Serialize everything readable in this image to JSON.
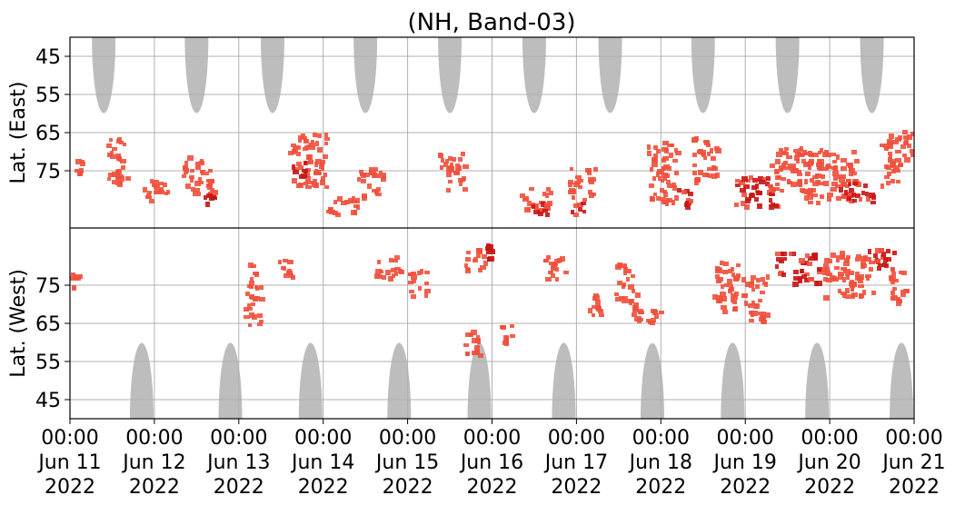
{
  "chart_data": {
    "type": "heatmap",
    "title": "(NH, Band-03)",
    "ylabel_top": "Lat. (East)",
    "ylabel_bottom": "Lat. (West)",
    "x_ticks": [
      {
        "time": "2022-06-11 00:00",
        "line1": "00:00",
        "line2": "Jun 11",
        "line3": "2022"
      },
      {
        "time": "2022-06-12 00:00",
        "line1": "00:00",
        "line2": "Jun 12",
        "line3": "2022"
      },
      {
        "time": "2022-06-13 00:00",
        "line1": "00:00",
        "line2": "Jun 13",
        "line3": "2022"
      },
      {
        "time": "2022-06-14 00:00",
        "line1": "00:00",
        "line2": "Jun 14",
        "line3": "2022"
      },
      {
        "time": "2022-06-15 00:00",
        "line1": "00:00",
        "line2": "Jun 15",
        "line3": "2022"
      },
      {
        "time": "2022-06-16 00:00",
        "line1": "00:00",
        "line2": "Jun 16",
        "line3": "2022"
      },
      {
        "time": "2022-06-17 00:00",
        "line1": "00:00",
        "line2": "Jun 17",
        "line3": "2022"
      },
      {
        "time": "2022-06-18 00:00",
        "line1": "00:00",
        "line2": "Jun 18",
        "line3": "2022"
      },
      {
        "time": "2022-06-19 00:00",
        "line1": "00:00",
        "line2": "Jun 19",
        "line3": "2022"
      },
      {
        "time": "2022-06-20 00:00",
        "line1": "00:00",
        "line2": "Jun 20",
        "line3": "2022"
      },
      {
        "time": "2022-06-21 00:00",
        "line1": "00:00",
        "line2": "Jun 21",
        "line3": "2022"
      }
    ],
    "y_ticks_east": [
      "45",
      "55",
      "65",
      "75"
    ],
    "y_ticks_west": [
      "75",
      "65",
      "55",
      "45"
    ],
    "xlim": [
      "2022-06-11 00:00",
      "2022-06-21 00:00"
    ],
    "grid": true,
    "colors": {
      "activity": "#f0503c",
      "activity_strong": "#c81414",
      "coverage_gap": "#bdbdbd",
      "grid": "#b0b0b0"
    },
    "east_gap_centers_day": [
      0.4,
      1.5,
      2.4,
      3.5,
      4.5,
      5.5,
      6.4,
      7.5,
      8.5,
      9.5
    ],
    "west_gap_centers_day": [
      0.85,
      1.9,
      2.85,
      3.9,
      4.85,
      5.85,
      6.9,
      7.85,
      8.85,
      9.85
    ],
    "activity_clusters": [
      {
        "day": 0.1,
        "lat_side": "east",
        "lat": 75,
        "day_width": 0.12,
        "lat_width": 7,
        "strength": "normal"
      },
      {
        "day": 0.05,
        "lat_side": "west",
        "lat": 77,
        "day_width": 0.1,
        "lat_width": 5,
        "strength": "normal"
      },
      {
        "day": 0.55,
        "lat_side": "east",
        "lat": 72,
        "day_width": 0.25,
        "lat_width": 12,
        "strength": "normal"
      },
      {
        "day": 1.0,
        "lat_side": "east",
        "lat": 80,
        "day_width": 0.3,
        "lat_width": 6,
        "strength": "normal"
      },
      {
        "day": 1.5,
        "lat_side": "east",
        "lat": 76,
        "day_width": 0.35,
        "lat_width": 10,
        "strength": "normal"
      },
      {
        "day": 1.65,
        "lat_side": "east",
        "lat": 82,
        "day_width": 0.15,
        "lat_width": 5,
        "strength": "strong"
      },
      {
        "day": 2.15,
        "lat_side": "west",
        "lat": 78,
        "day_width": 0.1,
        "lat_width": 6,
        "strength": "normal"
      },
      {
        "day": 2.15,
        "lat_side": "west",
        "lat": 70,
        "day_width": 0.2,
        "lat_width": 10,
        "strength": "normal"
      },
      {
        "day": 2.55,
        "lat_side": "west",
        "lat": 80,
        "day_width": 0.2,
        "lat_width": 5,
        "strength": "normal"
      },
      {
        "day": 2.8,
        "lat_side": "east",
        "lat": 72,
        "day_width": 0.45,
        "lat_width": 14,
        "strength": "normal"
      },
      {
        "day": 2.7,
        "lat_side": "east",
        "lat": 74,
        "day_width": 0.15,
        "lat_width": 4,
        "strength": "strong"
      },
      {
        "day": 3.2,
        "lat_side": "east",
        "lat": 84,
        "day_width": 0.4,
        "lat_width": 5,
        "strength": "normal"
      },
      {
        "day": 3.55,
        "lat_side": "east",
        "lat": 78,
        "day_width": 0.3,
        "lat_width": 8,
        "strength": "normal"
      },
      {
        "day": 3.75,
        "lat_side": "west",
        "lat": 80,
        "day_width": 0.3,
        "lat_width": 6,
        "strength": "normal"
      },
      {
        "day": 4.1,
        "lat_side": "west",
        "lat": 76,
        "day_width": 0.2,
        "lat_width": 8,
        "strength": "normal"
      },
      {
        "day": 4.5,
        "lat_side": "east",
        "lat": 75,
        "day_width": 0.3,
        "lat_width": 10,
        "strength": "normal"
      },
      {
        "day": 4.8,
        "lat_side": "west",
        "lat": 82,
        "day_width": 0.3,
        "lat_width": 6,
        "strength": "normal"
      },
      {
        "day": 4.95,
        "lat_side": "west",
        "lat": 84,
        "day_width": 0.08,
        "lat_width": 4,
        "strength": "strong"
      },
      {
        "day": 4.75,
        "lat_side": "west",
        "lat": 60,
        "day_width": 0.2,
        "lat_width": 8,
        "strength": "normal"
      },
      {
        "day": 5.15,
        "lat_side": "west",
        "lat": 62,
        "day_width": 0.15,
        "lat_width": 6,
        "strength": "normal"
      },
      {
        "day": 5.5,
        "lat_side": "east",
        "lat": 82,
        "day_width": 0.35,
        "lat_width": 6,
        "strength": "normal"
      },
      {
        "day": 5.55,
        "lat_side": "east",
        "lat": 84,
        "day_width": 0.2,
        "lat_width": 4,
        "strength": "strong"
      },
      {
        "day": 5.75,
        "lat_side": "west",
        "lat": 80,
        "day_width": 0.3,
        "lat_width": 6,
        "strength": "normal"
      },
      {
        "day": 6.05,
        "lat_side": "east",
        "lat": 78,
        "day_width": 0.3,
        "lat_width": 8,
        "strength": "normal"
      },
      {
        "day": 6.0,
        "lat_side": "east",
        "lat": 84,
        "day_width": 0.2,
        "lat_width": 4,
        "strength": "strong"
      },
      {
        "day": 6.2,
        "lat_side": "west",
        "lat": 70,
        "day_width": 0.15,
        "lat_width": 8,
        "strength": "normal"
      },
      {
        "day": 6.55,
        "lat_side": "west",
        "lat": 76,
        "day_width": 0.2,
        "lat_width": 10,
        "strength": "normal"
      },
      {
        "day": 6.7,
        "lat_side": "west",
        "lat": 70,
        "day_width": 0.15,
        "lat_width": 8,
        "strength": "normal"
      },
      {
        "day": 6.9,
        "lat_side": "west",
        "lat": 68,
        "day_width": 0.15,
        "lat_width": 5,
        "strength": "normal"
      },
      {
        "day": 7.0,
        "lat_side": "east",
        "lat": 75,
        "day_width": 0.35,
        "lat_width": 16,
        "strength": "normal"
      },
      {
        "day": 7.25,
        "lat_side": "east",
        "lat": 82,
        "day_width": 0.2,
        "lat_width": 5,
        "strength": "strong"
      },
      {
        "day": 7.5,
        "lat_side": "east",
        "lat": 72,
        "day_width": 0.3,
        "lat_width": 12,
        "strength": "normal"
      },
      {
        "day": 7.75,
        "lat_side": "west",
        "lat": 75,
        "day_width": 0.3,
        "lat_width": 14,
        "strength": "normal"
      },
      {
        "day": 8.1,
        "lat_side": "east",
        "lat": 80,
        "day_width": 0.5,
        "lat_width": 8,
        "strength": "strong"
      },
      {
        "day": 8.1,
        "lat_side": "west",
        "lat": 72,
        "day_width": 0.3,
        "lat_width": 12,
        "strength": "normal"
      },
      {
        "day": 8.5,
        "lat_side": "east",
        "lat": 74,
        "day_width": 0.5,
        "lat_width": 12,
        "strength": "normal"
      },
      {
        "day": 8.6,
        "lat_side": "west",
        "lat": 80,
        "day_width": 0.5,
        "lat_width": 8,
        "strength": "strong"
      },
      {
        "day": 9.0,
        "lat_side": "east",
        "lat": 76,
        "day_width": 0.6,
        "lat_width": 14,
        "strength": "normal"
      },
      {
        "day": 9.2,
        "lat_side": "west",
        "lat": 78,
        "day_width": 0.6,
        "lat_width": 12,
        "strength": "normal"
      },
      {
        "day": 9.3,
        "lat_side": "east",
        "lat": 80,
        "day_width": 0.4,
        "lat_width": 6,
        "strength": "strong"
      },
      {
        "day": 9.6,
        "lat_side": "west",
        "lat": 82,
        "day_width": 0.3,
        "lat_width": 6,
        "strength": "strong"
      },
      {
        "day": 9.7,
        "lat_side": "east",
        "lat": 72,
        "day_width": 0.25,
        "lat_width": 14,
        "strength": "normal"
      },
      {
        "day": 9.8,
        "lat_side": "west",
        "lat": 76,
        "day_width": 0.2,
        "lat_width": 10,
        "strength": "normal"
      },
      {
        "day": 9.9,
        "lat_side": "east",
        "lat": 68,
        "day_width": 0.15,
        "lat_width": 8,
        "strength": "normal"
      }
    ]
  }
}
